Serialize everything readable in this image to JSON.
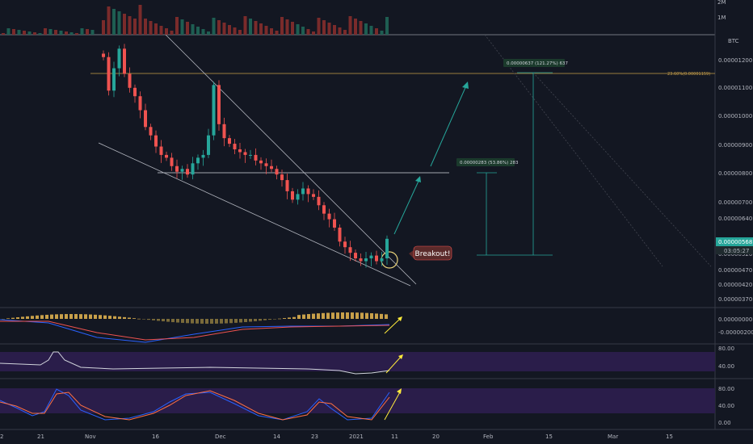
{
  "chart_data": {
    "type": "candlestick",
    "quote_currency": "BTC",
    "time_axis": {
      "ticks": [
        "2",
        "21",
        "Nov",
        "16",
        "Dec",
        "14",
        "23",
        "2021",
        "11",
        "20",
        "Feb",
        "15",
        "Mar",
        "15"
      ]
    },
    "price_axis": {
      "ticks": [
        "0.00001200",
        "0.00001100",
        "0.00001000",
        "0.00000900",
        "0.00000800",
        "0.00000700",
        "0.00000640",
        "0.00000520",
        "0.00000470",
        "0.00000420",
        "0.00000370"
      ],
      "range": [
        3.5e-06,
        1.3e-05
      ]
    },
    "current_price": {
      "value": "0.00000568",
      "countdown": "03:05:27",
      "color": "#26a69a"
    },
    "fib_level": {
      "label": "23.60%(0.00001159)"
    },
    "volume_axis": {
      "ticks": [
        "2M",
        "1M"
      ]
    },
    "candles_close": [
      1.22e-05,
      1.1e-05,
      1.18e-05,
      1.25e-05,
      1.16e-05,
      1.11e-05,
      1.08e-05,
      1.03e-05,
      9.7e-06,
      9.4e-06,
      9e-06,
      8.7e-06,
      8.6e-06,
      8.3e-06,
      8.1e-06,
      8.2e-06,
      8e-06,
      8.4e-06,
      8.6e-06,
      8.7e-06,
      9.4e-06,
      1.12e-05,
      9.8e-06,
      9.3e-06,
      9.1e-06,
      8.9e-06,
      8.8e-06,
      8.7e-06,
      8.7e-06,
      8.5e-06,
      8.4e-06,
      8.3e-06,
      8.2e-06,
      8e-06,
      7.8e-06,
      7.4e-06,
      7.1e-06,
      7.3e-06,
      7.5e-06,
      7.3e-06,
      7.2e-06,
      6.9e-06,
      6.6e-06,
      6.4e-06,
      6.1e-06,
      5.6e-06,
      5.4e-06,
      5.2e-06,
      5e-06,
      4.9e-06,
      5e-06,
      5.1e-06,
      4.9e-06,
      5e-06,
      5.7e-06
    ],
    "annotations": {
      "breakout": "Breakout!",
      "target1": "0.00000283 (53.86%) 283",
      "target2": "0.00000637 (121.27%) 637"
    },
    "macd": {
      "axis_ticks": [
        "0.00000000",
        "-0.00000200"
      ]
    },
    "rsi": {
      "axis_ticks": [
        "80.00",
        "40.00"
      ]
    },
    "stoch_rsi": {
      "axis_ticks": [
        "80.00",
        "40.00",
        "0.00"
      ]
    },
    "colors": {
      "up": "#26a69a",
      "down": "#ef5350",
      "band": "#2a1d4a",
      "arrow": "#ffeb3b",
      "fib": "#c8a04a"
    }
  }
}
